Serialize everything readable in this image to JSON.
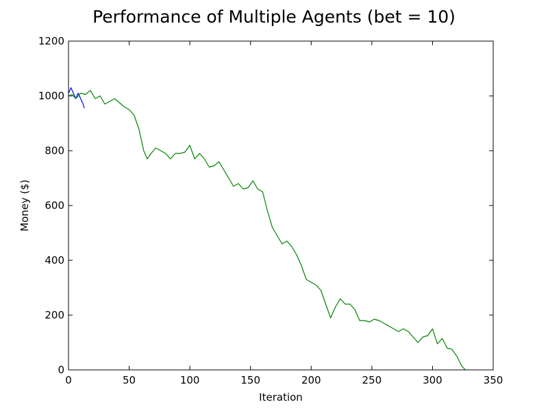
{
  "chart_data": {
    "type": "line",
    "title": "Performance of Multiple Agents (bet = 10)",
    "xlabel": "Iteration",
    "ylabel": "Money ($)",
    "xlim": [
      0,
      350
    ],
    "ylim": [
      0,
      1200
    ],
    "xticks": [
      "0",
      "50",
      "100",
      "150",
      "200",
      "250",
      "300",
      "350"
    ],
    "yticks": [
      "0",
      "200",
      "400",
      "600",
      "800",
      "1000",
      "1200"
    ],
    "grid": false,
    "legend": "none",
    "series": [
      {
        "color": "#0000ff",
        "x": [
          0,
          1,
          2,
          3,
          4,
          5,
          6,
          7,
          8,
          9,
          10,
          11,
          12,
          13
        ],
        "y": [
          1010,
          1020,
          1030,
          1020,
          1010,
          1000,
          990,
          1000,
          1010,
          1000,
          990,
          980,
          970,
          955
        ]
      },
      {
        "color": "#008000",
        "x": [
          0,
          3,
          6,
          10,
          14,
          18,
          22,
          26,
          30,
          34,
          38,
          42,
          46,
          50,
          54,
          58,
          62,
          65,
          68,
          72,
          76,
          80,
          84,
          88,
          92,
          96,
          100,
          104,
          108,
          112,
          116,
          120,
          124,
          128,
          132,
          136,
          140,
          144,
          148,
          152,
          156,
          160,
          164,
          168,
          172,
          176,
          180,
          184,
          188,
          192,
          196,
          200,
          204,
          208,
          212,
          216,
          220,
          224,
          228,
          232,
          236,
          240,
          244,
          248,
          252,
          256,
          260,
          264,
          268,
          272,
          276,
          280,
          284,
          288,
          292,
          296,
          300,
          304,
          308,
          312,
          316,
          320,
          324,
          327
        ],
        "y": [
          1000,
          1005,
          990,
          1010,
          1005,
          1020,
          990,
          1000,
          970,
          980,
          990,
          975,
          960,
          950,
          930,
          880,
          800,
          770,
          790,
          810,
          800,
          790,
          770,
          790,
          790,
          795,
          820,
          770,
          790,
          770,
          740,
          745,
          760,
          730,
          700,
          670,
          680,
          660,
          665,
          690,
          660,
          650,
          580,
          520,
          490,
          460,
          470,
          450,
          420,
          380,
          330,
          320,
          310,
          290,
          240,
          190,
          230,
          260,
          240,
          240,
          220,
          180,
          180,
          175,
          185,
          180,
          170,
          160,
          150,
          140,
          150,
          140,
          120,
          100,
          120,
          125,
          150,
          95,
          115,
          80,
          75,
          50,
          15,
          0
        ]
      }
    ]
  }
}
